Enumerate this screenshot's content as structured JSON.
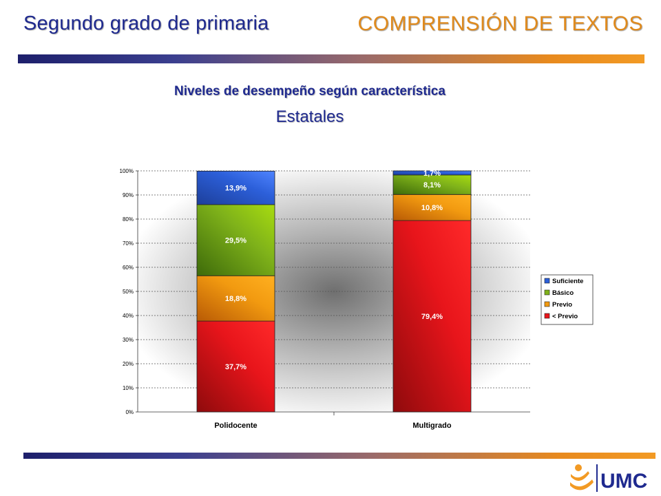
{
  "header": {
    "grade_title": "Segundo grado de primaria",
    "area_title": "COMPRENSIÓN DE TEXTOS"
  },
  "logo": {
    "text": "UMC",
    "colors": {
      "figure": "#f29a24",
      "text": "#1f2a8f"
    }
  },
  "colors": {
    "title_blue": "#1f2a8f",
    "title_orange": "#e08a1c"
  },
  "chart_data": {
    "type": "bar",
    "stacked": true,
    "title": "Niveles de desempeño según característica",
    "subtitle": "Estatales",
    "categories": [
      "Polidocente",
      "Multigrado"
    ],
    "ylim": [
      0,
      100
    ],
    "yticks": [
      "0%",
      "10%",
      "20%",
      "30%",
      "40%",
      "50%",
      "60%",
      "70%",
      "80%",
      "90%",
      "100%"
    ],
    "grid": true,
    "legend_position": "right",
    "series": [
      {
        "name": "< Previo",
        "values": [
          37.7,
          79.4
        ],
        "labels": [
          "37,7%",
          "79,4%"
        ],
        "color": "#e8151b"
      },
      {
        "name": "Previo",
        "values": [
          18.8,
          10.8
        ],
        "labels": [
          "18,8%",
          "10,8%"
        ],
        "color": "#f29a10"
      },
      {
        "name": "Básico",
        "values": [
          29.5,
          8.1
        ],
        "labels": [
          "29,5%",
          "8,1%"
        ],
        "color": "#7fb21a"
      },
      {
        "name": "Suficiente",
        "values": [
          13.9,
          1.7
        ],
        "labels": [
          "13,9%",
          "1,7%"
        ],
        "color": "#2c5fd9"
      }
    ],
    "legend_order": [
      "Suficiente",
      "Básico",
      "Previo",
      "< Previo"
    ]
  }
}
